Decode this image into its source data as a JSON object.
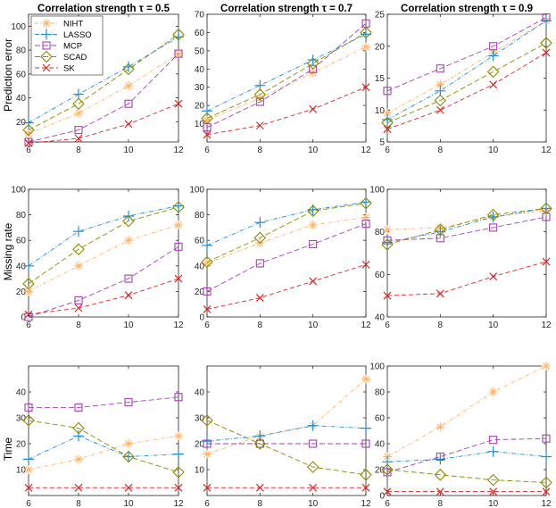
{
  "colors": {
    "NIHT": "#ffb266",
    "LASSO": "#1f8fd6",
    "MCP": "#a243b0",
    "SCAD": "#8c8c00",
    "SK": "#d62b2b",
    "axis": "#262626",
    "grid": "#000000"
  },
  "legend": {
    "position": "top-left of first panel",
    "entries": [
      "NIHT",
      "LASSO",
      "MCP",
      "SCAD",
      "SK"
    ]
  },
  "column_titles": [
    "Correlation strength τ = 0.5",
    "Correlation strength τ = 0.7",
    "Correlation strength τ = 0.9"
  ],
  "row_labels": [
    "Prediction error",
    "Missing rate",
    "Time"
  ],
  "chart_data": [
    {
      "type": "line",
      "title": "Correlation strength τ = 0.5",
      "ylabel": "Prediction error",
      "x": [
        6,
        8,
        10,
        12
      ],
      "xlim": [
        6,
        12
      ],
      "ylim": [
        3,
        110
      ],
      "yticks": [
        20,
        40,
        60,
        80,
        100
      ],
      "xticks": [
        6,
        8,
        10,
        12
      ],
      "series": [
        {
          "name": "NIHT",
          "values": [
            10,
            27,
            50,
            77
          ]
        },
        {
          "name": "LASSO",
          "values": [
            19,
            43,
            66,
            91
          ]
        },
        {
          "name": "MCP",
          "values": [
            3,
            13,
            35,
            77
          ]
        },
        {
          "name": "SCAD",
          "values": [
            13,
            35,
            64,
            93
          ]
        },
        {
          "name": "SK",
          "values": [
            2,
            6,
            18,
            35
          ]
        }
      ]
    },
    {
      "type": "line",
      "title": "Correlation strength τ = 0.7",
      "ylabel": "",
      "x": [
        6,
        8,
        10,
        12
      ],
      "xlim": [
        6,
        12
      ],
      "ylim": [
        0,
        70
      ],
      "yticks": [
        10,
        20,
        30,
        40,
        50,
        60,
        70
      ],
      "xticks": [
        6,
        8,
        10,
        12
      ],
      "series": [
        {
          "name": "NIHT",
          "values": [
            12,
            24,
            38,
            52
          ]
        },
        {
          "name": "LASSO",
          "values": [
            17,
            31,
            45,
            59
          ]
        },
        {
          "name": "MCP",
          "values": [
            8,
            22,
            40,
            65
          ]
        },
        {
          "name": "SCAD",
          "values": [
            13,
            26,
            43,
            60
          ]
        },
        {
          "name": "SK",
          "values": [
            4,
            9,
            18,
            30
          ]
        }
      ]
    },
    {
      "type": "line",
      "title": "Correlation strength τ = 0.9",
      "ylabel": "",
      "x": [
        6,
        8,
        10,
        12
      ],
      "xlim": [
        6,
        12
      ],
      "ylim": [
        5,
        25
      ],
      "yticks": [
        5,
        10,
        15,
        20,
        25
      ],
      "xticks": [
        6,
        8,
        10,
        12
      ],
      "series": [
        {
          "name": "NIHT",
          "values": [
            9.5,
            14,
            19,
            24
          ]
        },
        {
          "name": "LASSO",
          "values": [
            8.5,
            13,
            18.5,
            24
          ]
        },
        {
          "name": "MCP",
          "values": [
            13,
            16.5,
            20,
            24.5
          ]
        },
        {
          "name": "SCAD",
          "values": [
            8,
            11.5,
            16,
            20.5
          ]
        },
        {
          "name": "SK",
          "values": [
            7,
            10,
            14,
            19
          ]
        }
      ]
    },
    {
      "type": "line",
      "title": "",
      "ylabel": "Missing rate",
      "x": [
        6,
        8,
        10,
        12
      ],
      "xlim": [
        6,
        12
      ],
      "ylim": [
        0,
        100
      ],
      "yticks": [
        0,
        20,
        40,
        60,
        80,
        100
      ],
      "xticks": [
        6,
        8,
        10,
        12
      ],
      "series": [
        {
          "name": "NIHT",
          "values": [
            20,
            40,
            60,
            72
          ]
        },
        {
          "name": "LASSO",
          "values": [
            40,
            67,
            79,
            87
          ]
        },
        {
          "name": "MCP",
          "values": [
            0,
            13,
            30,
            55
          ]
        },
        {
          "name": "SCAD",
          "values": [
            26,
            53,
            75,
            86
          ]
        },
        {
          "name": "SK",
          "values": [
            2,
            7,
            17,
            30
          ]
        }
      ]
    },
    {
      "type": "line",
      "title": "",
      "ylabel": "",
      "x": [
        6,
        8,
        10,
        12
      ],
      "xlim": [
        6,
        12
      ],
      "ylim": [
        0,
        100
      ],
      "yticks": [
        0,
        20,
        40,
        60,
        80,
        100
      ],
      "xticks": [
        6,
        8,
        10,
        12
      ],
      "series": [
        {
          "name": "NIHT",
          "values": [
            42,
            58,
            72,
            78
          ]
        },
        {
          "name": "LASSO",
          "values": [
            56,
            74,
            84,
            90
          ]
        },
        {
          "name": "MCP",
          "values": [
            20,
            42,
            57,
            73
          ]
        },
        {
          "name": "SCAD",
          "values": [
            43,
            62,
            83,
            89
          ]
        },
        {
          "name": "SK",
          "values": [
            6,
            15,
            28,
            41
          ]
        }
      ]
    },
    {
      "type": "line",
      "title": "",
      "ylabel": "",
      "x": [
        6,
        8,
        10,
        12
      ],
      "xlim": [
        6,
        12
      ],
      "ylim": [
        40,
        100
      ],
      "yticks": [
        40,
        60,
        80,
        100
      ],
      "xticks": [
        6,
        8,
        10,
        12
      ],
      "series": [
        {
          "name": "NIHT",
          "values": [
            81,
            82,
            87,
            90
          ]
        },
        {
          "name": "LASSO",
          "values": [
            75,
            80,
            87,
            91
          ]
        },
        {
          "name": "MCP",
          "values": [
            76,
            77,
            82,
            87
          ]
        },
        {
          "name": "SCAD",
          "values": [
            74,
            81,
            88,
            91
          ]
        },
        {
          "name": "SK",
          "values": [
            50,
            51,
            59,
            66
          ]
        }
      ]
    },
    {
      "type": "line",
      "title": "",
      "ylabel": "Time",
      "x": [
        6,
        8,
        10,
        12
      ],
      "xlim": [
        6,
        12
      ],
      "ylim": [
        0,
        50
      ],
      "yticks": [
        10,
        20,
        30,
        40
      ],
      "xticks": [
        6,
        8,
        10,
        12
      ],
      "series": [
        {
          "name": "NIHT",
          "values": [
            10,
            14,
            20,
            23
          ]
        },
        {
          "name": "LASSO",
          "values": [
            14,
            23,
            15,
            16
          ]
        },
        {
          "name": "MCP",
          "values": [
            34,
            34,
            36,
            38
          ]
        },
        {
          "name": "SCAD",
          "values": [
            29,
            26,
            15,
            9
          ]
        },
        {
          "name": "SK",
          "values": [
            3,
            3,
            3,
            3
          ]
        }
      ]
    },
    {
      "type": "line",
      "title": "",
      "ylabel": "",
      "x": [
        6,
        8,
        10,
        12
      ],
      "xlim": [
        6,
        12
      ],
      "ylim": [
        0,
        50
      ],
      "yticks": [
        10,
        20,
        30,
        40
      ],
      "xticks": [
        6,
        8,
        10,
        12
      ],
      "series": [
        {
          "name": "NIHT",
          "values": [
            16,
            23,
            27,
            45
          ]
        },
        {
          "name": "LASSO",
          "values": [
            21,
            23,
            27,
            26
          ]
        },
        {
          "name": "MCP",
          "values": [
            20,
            20,
            20,
            20
          ]
        },
        {
          "name": "SCAD",
          "values": [
            29,
            20,
            11,
            8
          ]
        },
        {
          "name": "SK",
          "values": [
            3,
            3,
            3,
            3
          ]
        }
      ]
    },
    {
      "type": "line",
      "title": "",
      "ylabel": "",
      "x": [
        6,
        8,
        10,
        12
      ],
      "xlim": [
        6,
        12
      ],
      "ylim": [
        0,
        100
      ],
      "yticks": [
        0,
        20,
        40,
        60,
        80,
        100
      ],
      "xticks": [
        6,
        8,
        10,
        12
      ],
      "series": [
        {
          "name": "NIHT",
          "values": [
            30,
            53,
            80,
            100
          ]
        },
        {
          "name": "LASSO",
          "values": [
            26,
            28,
            34,
            30
          ]
        },
        {
          "name": "MCP",
          "values": [
            18,
            30,
            43,
            44
          ]
        },
        {
          "name": "SCAD",
          "values": [
            20,
            16,
            12,
            10
          ]
        },
        {
          "name": "SK",
          "values": [
            3,
            3,
            3,
            3
          ]
        }
      ]
    }
  ]
}
